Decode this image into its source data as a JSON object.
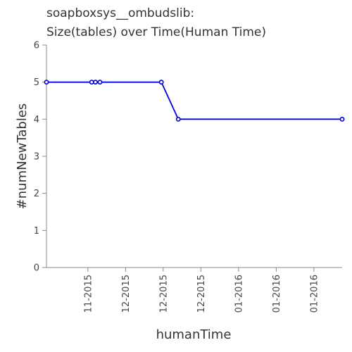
{
  "chart_data": {
    "type": "line",
    "title_lines": [
      "soapboxsys__ombudslib:",
      "Size(tables) over Time(Human Time)"
    ],
    "xlabel": "humanTime",
    "ylabel": "#numNewTables",
    "ylim": [
      0,
      6
    ],
    "y_ticks": [
      "0",
      "1",
      "2",
      "3",
      "4",
      "5",
      "6"
    ],
    "x_tick_labels": [
      "11-2015",
      "12-2015",
      "12-2015",
      "12-2015",
      "01-2016",
      "01-2016",
      "01-2016"
    ],
    "x_tick_positions": [
      11.0,
      21.0,
      31.0,
      41.0,
      51.0,
      61.0,
      71.0
    ],
    "xlim": [
      0,
      78.5
    ],
    "grid": false,
    "legend": "none",
    "line_color": "#0000dd",
    "series": [
      {
        "x": [
          0,
          12,
          13,
          14.2,
          30.5,
          35,
          78.5
        ],
        "y": [
          5,
          5,
          5,
          5,
          5,
          4,
          4
        ]
      }
    ]
  }
}
